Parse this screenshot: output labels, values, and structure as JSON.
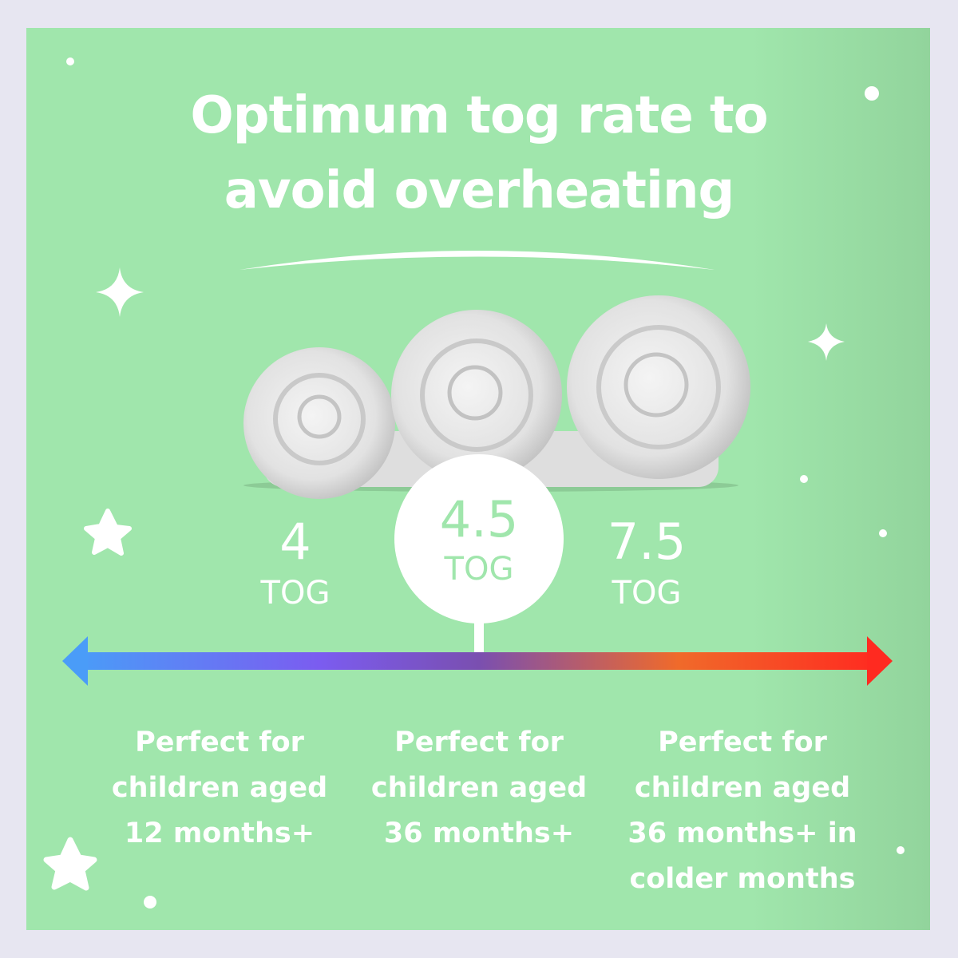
{
  "title": {
    "line1": "Optimum tog rate to",
    "line2": "avoid overheating"
  },
  "tog_options": [
    {
      "value": "4",
      "unit": "TOG",
      "description": [
        "Perfect for",
        "children aged",
        "12 months+"
      ]
    },
    {
      "value": "4.5",
      "unit": "TOG",
      "highlighted": true,
      "description": [
        "Perfect for",
        "children aged",
        "36 months+"
      ]
    },
    {
      "value": "7.5",
      "unit": "TOG",
      "description": [
        "Perfect for",
        "children aged",
        "36 months+ in",
        "colder months"
      ]
    }
  ],
  "colors": {
    "background": "#a0e6ac",
    "border": "#e7e6f1",
    "highlight_text": "#a0e6ac",
    "scale_cold": "#4a9cf8",
    "scale_mid": "#7b5cf0",
    "scale_hot": "#ff2a20"
  }
}
